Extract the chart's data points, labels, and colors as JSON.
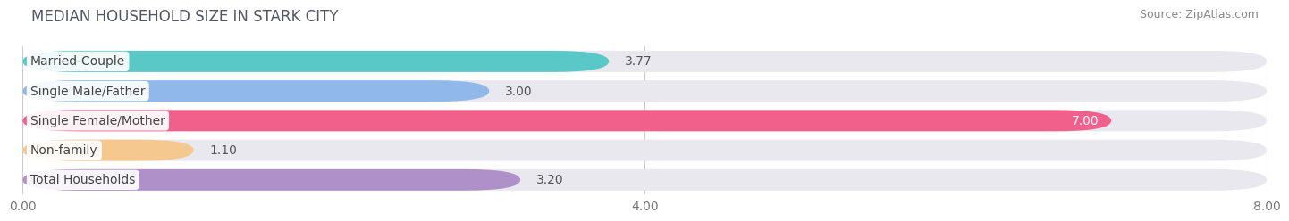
{
  "title": "MEDIAN HOUSEHOLD SIZE IN STARK CITY",
  "source": "Source: ZipAtlas.com",
  "categories": [
    "Married-Couple",
    "Single Male/Father",
    "Single Female/Mother",
    "Non-family",
    "Total Households"
  ],
  "values": [
    3.77,
    3.0,
    7.0,
    1.1,
    3.2
  ],
  "bar_colors": [
    "#5bc8c8",
    "#90b8e8",
    "#f0608a",
    "#f5c890",
    "#b090c8"
  ],
  "bar_bg_color": "#e8e8ee",
  "value_label_inside": [
    false,
    false,
    true,
    false,
    false
  ],
  "value_label_colors_inside": [
    "white"
  ],
  "value_label_color_outside": "#666666",
  "xlim": [
    0,
    8.0
  ],
  "xticks": [
    0.0,
    4.0,
    8.0
  ],
  "xtick_labels": [
    "0.00",
    "4.00",
    "8.00"
  ],
  "background_color": "#ffffff",
  "plot_bg_color": "#ffffff",
  "title_fontsize": 12,
  "source_fontsize": 9,
  "label_fontsize": 10,
  "value_fontsize": 10,
  "bar_height": 0.72,
  "bar_gap": 0.28
}
